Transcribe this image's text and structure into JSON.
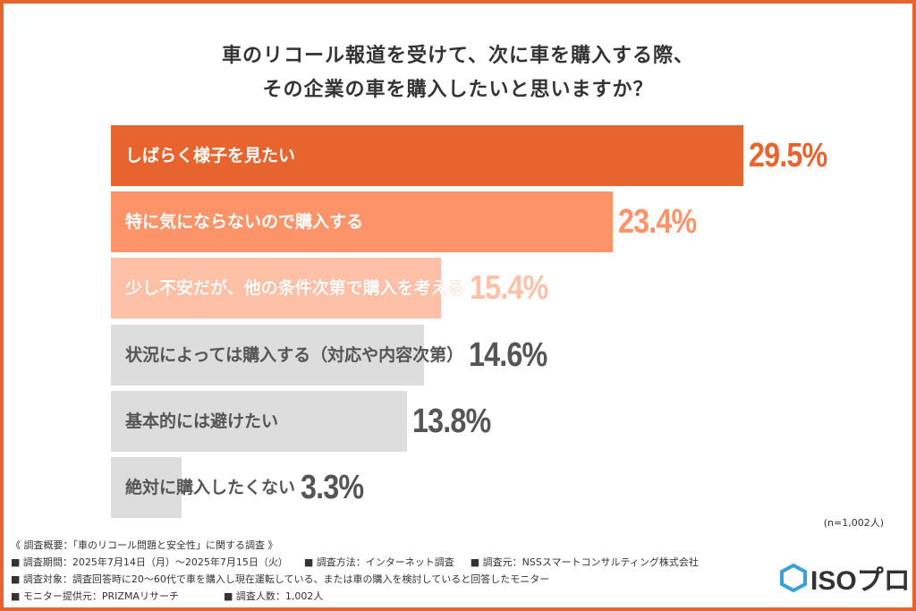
{
  "chart_data": {
    "type": "bar",
    "orientation": "horizontal",
    "title": "車のリコール報道を受けて、次に車を購入する際、\nその企業の車を購入したいと思いますか？",
    "categories": [
      "しばらく様子を見たい",
      "特に気にならないので購入する",
      "少し不安だが、他の条件次第で購入を考える",
      "状況によっては購入する（対応や内容次第）",
      "基本的には避けたい",
      "絶対に購入したくない"
    ],
    "values": [
      29.5,
      23.4,
      15.4,
      14.6,
      13.8,
      3.3
    ],
    "value_labels": [
      "29.5%",
      "23.4%",
      "15.4%",
      "14.6%",
      "13.8%",
      "3.3%"
    ],
    "colors": [
      "#e8642f",
      "#fd9368",
      "#ffc0a8",
      "#dddddd",
      "#dddddd",
      "#dddddd"
    ],
    "value_colors": [
      "#e8642f",
      "#fd9368",
      "#ffc0a8",
      "#555555",
      "#555555",
      "#555555"
    ],
    "label_colors": [
      "#ffffff",
      "#ffffff",
      "#ffffff",
      "#555555",
      "#555555",
      "#555555"
    ],
    "xlim": [
      0,
      29.5
    ],
    "grid": false,
    "sample_note": "(n=1,002人)"
  },
  "footer": {
    "heading": "《 調査概要：「車のリコール問題と安全性」に関する調査 》",
    "period": "■ 調査期間：2025年7月14日（月）～2025年7月15日（火）",
    "method": "■ 調査方法：インターネット調査",
    "source": "■ 調査元：NSSスマートコンサルティング株式会社",
    "target": "■ 調査対象：調査回答時に20～60代で車を購入し現在運転している、または車の購入を検討していると回答したモニター",
    "provider": "■ モニター提供元：PRIZMAリサーチ",
    "count": "■ 調査人数：1,002人"
  },
  "logo": {
    "text": "ISOプロ",
    "color": "#3aa0d8"
  }
}
